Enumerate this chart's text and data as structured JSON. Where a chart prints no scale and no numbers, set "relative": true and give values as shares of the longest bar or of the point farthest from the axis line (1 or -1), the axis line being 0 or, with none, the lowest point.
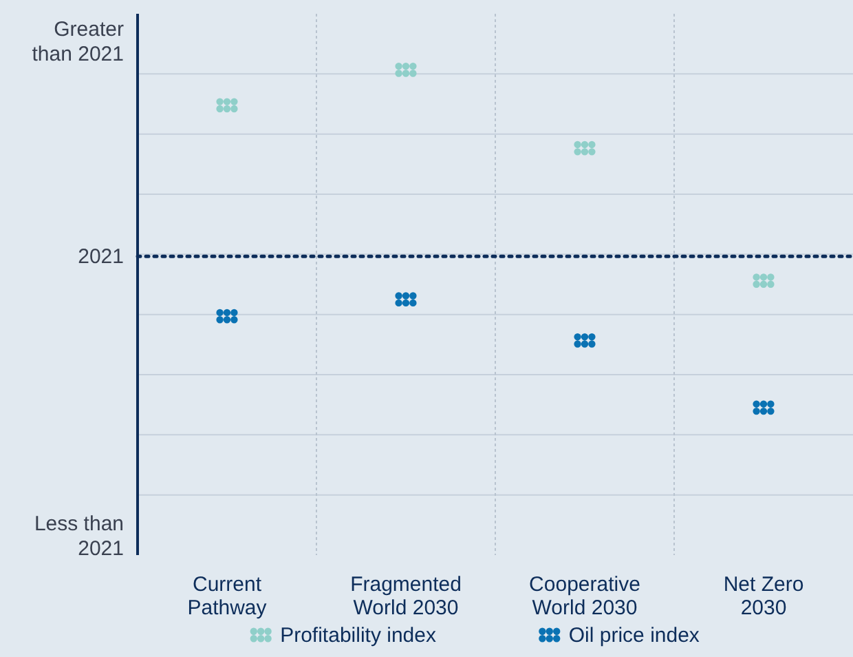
{
  "chart_data": {
    "type": "scatter",
    "relative": true,
    "categories": [
      "Current Pathway",
      "Fragmented World 2030",
      "Cooperative World 2030",
      "Net Zero 2030"
    ],
    "series": [
      {
        "name": "Profitability index",
        "color": "#8fcfc9",
        "values": [
          0.81,
          1,
          0.58,
          -0.13
        ]
      },
      {
        "name": "Oil price index",
        "color": "#0a72b3",
        "values": [
          -0.32,
          -0.23,
          -0.45,
          -0.81
        ]
      }
    ],
    "ref_lines": [
      {
        "axis": "y",
        "value": 0,
        "label": null,
        "color": "#0d2d5a",
        "line_style": "dotted"
      }
    ],
    "annotations": [
      "Greater than 2021",
      "2021",
      "Less than 2021"
    ],
    "grid": true,
    "legend": "bottom",
    "marker": "circle"
  }
}
